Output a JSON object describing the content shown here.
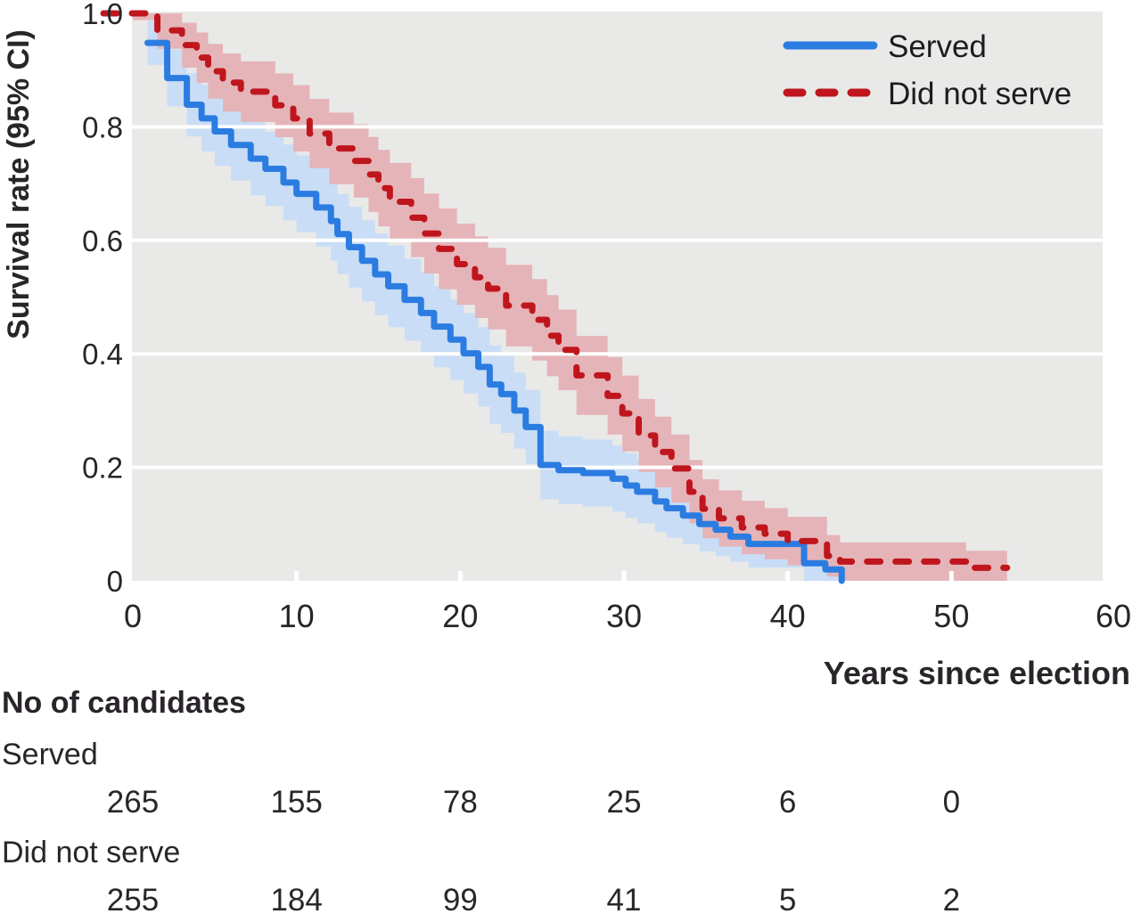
{
  "chart_data": {
    "type": "line",
    "subtype": "kaplan-meier-survival-steps",
    "title": "",
    "x_axis": {
      "label": "Years since election",
      "ticks": [
        "0",
        "10",
        "20",
        "30",
        "40",
        "50",
        "60"
      ],
      "tick_values": [
        0,
        10,
        20,
        30,
        40,
        50,
        60
      ],
      "range": [
        0,
        60
      ]
    },
    "y_axis": {
      "label": "Survival rate (95% CI)",
      "ticks": [
        "1.0",
        "0.8",
        "0.6",
        "0.4",
        "0.2",
        "0"
      ],
      "tick_values": [
        1.0,
        0.8,
        0.6,
        0.4,
        0.2,
        0
      ],
      "range": [
        0,
        1
      ]
    },
    "panel": {
      "bg": "#e9e9e8",
      "gridline_color": "#ffffff",
      "grid_values": [
        0.2,
        0.4,
        0.6,
        0.8
      ],
      "tick_mark_values": [
        10,
        20,
        30,
        40,
        50
      ]
    },
    "legend": {
      "position": "top-right"
    },
    "ci_halfwidth": {
      "base": 0.012,
      "scale": 0.12
    },
    "series": [
      {
        "name": "Served",
        "style": "solid",
        "color": "#2b7ce1",
        "ci_color": "#c9ddf6",
        "points": [
          [
            0.9,
            0.948
          ],
          [
            2.1,
            0.886
          ],
          [
            3.3,
            0.839
          ],
          [
            4.2,
            0.815
          ],
          [
            5.0,
            0.792
          ],
          [
            6.0,
            0.768
          ],
          [
            7.2,
            0.744
          ],
          [
            8.1,
            0.726
          ],
          [
            9.2,
            0.702
          ],
          [
            10.0,
            0.682
          ],
          [
            11.2,
            0.658
          ],
          [
            12.1,
            0.634
          ],
          [
            12.5,
            0.611
          ],
          [
            13.2,
            0.588
          ],
          [
            14.0,
            0.564
          ],
          [
            14.8,
            0.54
          ],
          [
            15.6,
            0.519
          ],
          [
            16.6,
            0.495
          ],
          [
            17.6,
            0.472
          ],
          [
            18.4,
            0.448
          ],
          [
            19.4,
            0.425
          ],
          [
            20.2,
            0.401
          ],
          [
            21.1,
            0.377
          ],
          [
            21.8,
            0.346
          ],
          [
            22.5,
            0.329
          ],
          [
            23.3,
            0.3
          ],
          [
            24.0,
            0.271
          ],
          [
            24.9,
            0.204
          ],
          [
            26.0,
            0.195
          ],
          [
            27.5,
            0.19
          ],
          [
            29.3,
            0.18
          ],
          [
            30.1,
            0.168
          ],
          [
            30.8,
            0.157
          ],
          [
            31.9,
            0.14
          ],
          [
            32.6,
            0.128
          ],
          [
            33.6,
            0.115
          ],
          [
            34.6,
            0.1
          ],
          [
            35.6,
            0.09
          ],
          [
            36.5,
            0.078
          ],
          [
            37.6,
            0.065
          ],
          [
            41.0,
            0.031
          ],
          [
            42.3,
            0.02
          ],
          [
            43.3,
            0.0
          ]
        ]
      },
      {
        "name": "Did not serve",
        "style": "dashed",
        "color": "#bf161d",
        "ci_color": "#e5b4b8",
        "points": [
          [
            0,
            1.0
          ],
          [
            1.5,
            0.97
          ],
          [
            3.0,
            0.944
          ],
          [
            3.9,
            0.922
          ],
          [
            4.6,
            0.898
          ],
          [
            5.5,
            0.878
          ],
          [
            6.6,
            0.862
          ],
          [
            8.7,
            0.838
          ],
          [
            9.8,
            0.815
          ],
          [
            10.8,
            0.788
          ],
          [
            12.0,
            0.762
          ],
          [
            13.5,
            0.74
          ],
          [
            14.4,
            0.716
          ],
          [
            15.0,
            0.692
          ],
          [
            15.7,
            0.668
          ],
          [
            17.0,
            0.64
          ],
          [
            17.8,
            0.612
          ],
          [
            18.7,
            0.585
          ],
          [
            19.8,
            0.558
          ],
          [
            20.9,
            0.535
          ],
          [
            21.7,
            0.515
          ],
          [
            22.8,
            0.485
          ],
          [
            24.4,
            0.46
          ],
          [
            25.3,
            0.432
          ],
          [
            26.0,
            0.407
          ],
          [
            27.1,
            0.362
          ],
          [
            29.0,
            0.326
          ],
          [
            29.9,
            0.295
          ],
          [
            30.9,
            0.256
          ],
          [
            31.9,
            0.227
          ],
          [
            32.9,
            0.198
          ],
          [
            34.0,
            0.157
          ],
          [
            34.8,
            0.127
          ],
          [
            35.8,
            0.11
          ],
          [
            37.2,
            0.094
          ],
          [
            38.6,
            0.083
          ],
          [
            40.0,
            0.07
          ],
          [
            42.4,
            0.044
          ],
          [
            43.2,
            0.034
          ],
          [
            50.9,
            0.023
          ],
          [
            53.4,
            0.023
          ]
        ]
      }
    ],
    "risk_table": {
      "title": "No of candidates",
      "time_points": [
        0,
        10,
        20,
        30,
        40,
        50
      ],
      "rows": [
        {
          "label": "Served",
          "values": [
            "265",
            "155",
            "78",
            "25",
            "6",
            "0"
          ]
        },
        {
          "label": "Did not serve",
          "values": [
            "255",
            "184",
            "99",
            "41",
            "5",
            "2"
          ]
        }
      ]
    }
  }
}
